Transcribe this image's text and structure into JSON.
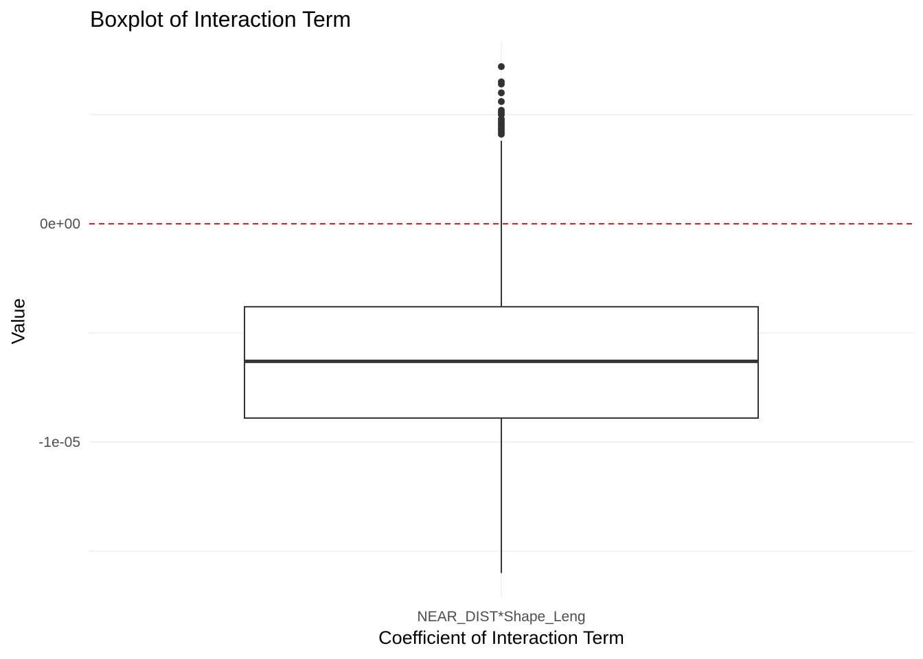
{
  "chart_data": {
    "type": "boxplot",
    "title": "Boxplot of Interaction Term",
    "xlabel": "Coefficient of Interaction Term",
    "ylabel": "Value",
    "categories": [
      "NEAR_DIST*Shape_Leng"
    ],
    "y_ticks": [
      {
        "value": 0,
        "label": "0e+00"
      },
      {
        "value": -1e-05,
        "label": "-1e-05"
      }
    ],
    "ylim": [
      -1.71e-05,
      8.2e-06
    ],
    "grid": true,
    "box": {
      "category": "NEAR_DIST*Shape_Leng",
      "whisker_low": -1.6e-05,
      "q1": -8.9e-06,
      "median": -6.3e-06,
      "q3": -3.8e-06,
      "whisker_high": 3.8e-06
    },
    "outliers": [
      7.2e-06,
      6.5e-06,
      6.4e-06,
      6e-06,
      5.6e-06,
      5.2e-06,
      5.1e-06,
      5e-06,
      4.8e-06,
      4.7e-06,
      4.6e-06,
      4.5e-06,
      4.4e-06,
      4.3e-06,
      4.2e-06,
      4.1e-06
    ],
    "reference_line": {
      "value": 0,
      "style": "dashed",
      "color": "#e41a1c"
    },
    "colors": {
      "box_stroke": "#333333",
      "grid": "#ebebeb",
      "tick_label": "#4d4d4d",
      "background": "#ffffff"
    }
  }
}
